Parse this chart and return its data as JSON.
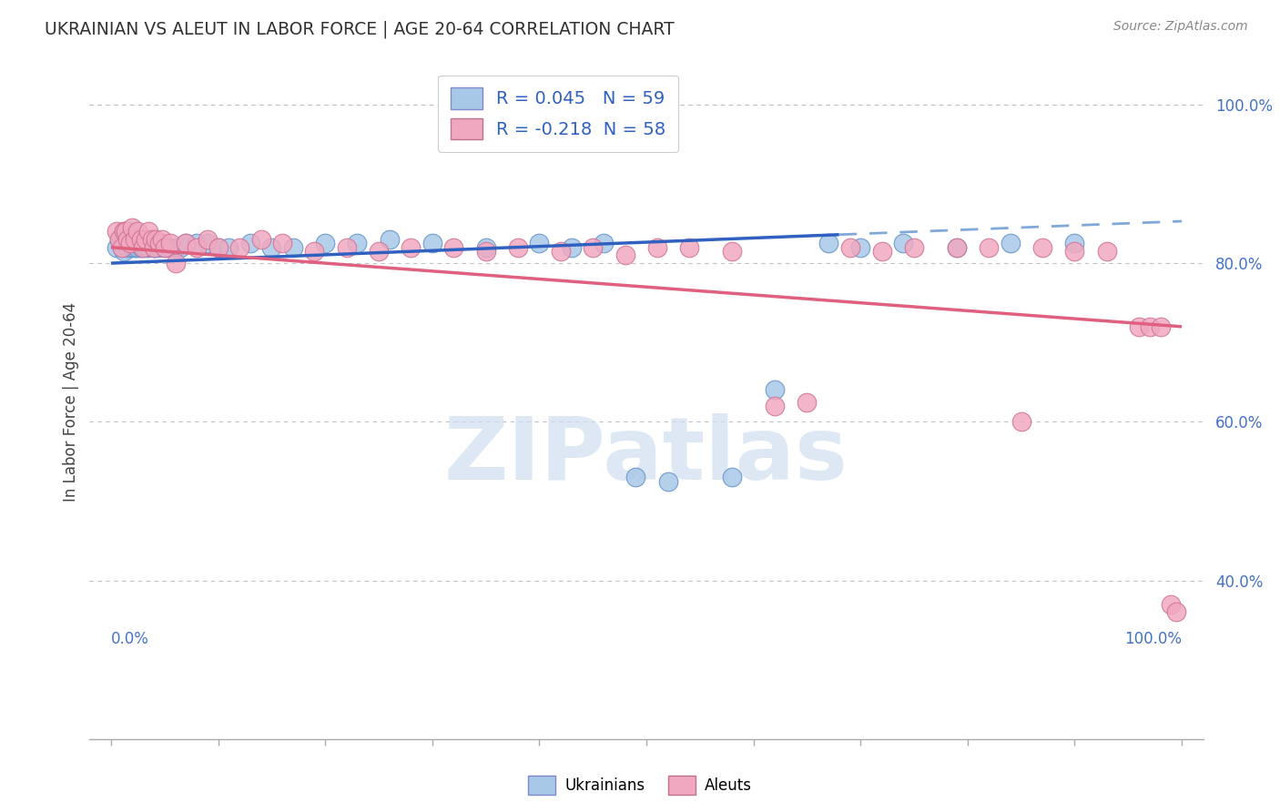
{
  "title": "UKRAINIAN VS ALEUT IN LABOR FORCE | AGE 20-64 CORRELATION CHART",
  "source": "Source: ZipAtlas.com",
  "ylabel": "In Labor Force | Age 20-64",
  "ukrainian_color": "#a8c8e8",
  "aleut_color": "#f0a8c0",
  "trend_ukrainian_solid_color": "#3060c0",
  "trend_ukrainian_dash_color": "#80a8d8",
  "trend_aleut_color": "#e06080",
  "watermark_text": "ZIPatlas",
  "legend_line1": "R = 0.045   N = 59",
  "legend_line2": "R = -0.218  N = 58",
  "ukr_x": [
    0.005,
    0.008,
    0.01,
    0.01,
    0.01,
    0.012,
    0.012,
    0.013,
    0.015,
    0.015,
    0.015,
    0.018,
    0.018,
    0.02,
    0.02,
    0.022,
    0.022,
    0.025,
    0.025,
    0.028,
    0.028,
    0.03,
    0.032,
    0.035,
    0.038,
    0.04,
    0.042,
    0.045,
    0.048,
    0.05,
    0.055,
    0.06,
    0.065,
    0.07,
    0.08,
    0.09,
    0.1,
    0.11,
    0.13,
    0.15,
    0.17,
    0.2,
    0.23,
    0.26,
    0.3,
    0.35,
    0.4,
    0.43,
    0.46,
    0.49,
    0.52,
    0.58,
    0.62,
    0.67,
    0.7,
    0.74,
    0.79,
    0.84,
    0.9
  ],
  "ukr_y": [
    0.82,
    0.83,
    0.82,
    0.835,
    0.825,
    0.815,
    0.835,
    0.84,
    0.82,
    0.83,
    0.84,
    0.825,
    0.835,
    0.82,
    0.835,
    0.82,
    0.83,
    0.82,
    0.83,
    0.82,
    0.825,
    0.83,
    0.82,
    0.82,
    0.825,
    0.82,
    0.82,
    0.82,
    0.825,
    0.82,
    0.82,
    0.82,
    0.82,
    0.825,
    0.825,
    0.825,
    0.82,
    0.82,
    0.825,
    0.82,
    0.82,
    0.825,
    0.825,
    0.83,
    0.825,
    0.82,
    0.825,
    0.82,
    0.825,
    0.53,
    0.525,
    0.53,
    0.64,
    0.825,
    0.82,
    0.825,
    0.82,
    0.825,
    0.825
  ],
  "aleut_x": [
    0.005,
    0.008,
    0.01,
    0.012,
    0.014,
    0.015,
    0.018,
    0.02,
    0.022,
    0.025,
    0.028,
    0.03,
    0.032,
    0.035,
    0.038,
    0.04,
    0.042,
    0.045,
    0.048,
    0.05,
    0.055,
    0.06,
    0.07,
    0.08,
    0.09,
    0.1,
    0.12,
    0.14,
    0.16,
    0.19,
    0.22,
    0.25,
    0.28,
    0.32,
    0.35,
    0.38,
    0.42,
    0.45,
    0.48,
    0.51,
    0.54,
    0.58,
    0.62,
    0.65,
    0.69,
    0.72,
    0.75,
    0.79,
    0.82,
    0.85,
    0.87,
    0.9,
    0.93,
    0.96,
    0.97,
    0.98,
    0.99,
    0.995
  ],
  "aleut_y": [
    0.84,
    0.83,
    0.82,
    0.84,
    0.84,
    0.83,
    0.825,
    0.845,
    0.83,
    0.84,
    0.83,
    0.82,
    0.83,
    0.84,
    0.83,
    0.82,
    0.83,
    0.825,
    0.83,
    0.82,
    0.825,
    0.8,
    0.825,
    0.82,
    0.83,
    0.82,
    0.82,
    0.83,
    0.825,
    0.815,
    0.82,
    0.815,
    0.82,
    0.82,
    0.815,
    0.82,
    0.815,
    0.82,
    0.81,
    0.82,
    0.82,
    0.815,
    0.62,
    0.625,
    0.82,
    0.815,
    0.82,
    0.82,
    0.82,
    0.6,
    0.82,
    0.815,
    0.815,
    0.72,
    0.72,
    0.72,
    0.37,
    0.36
  ],
  "ukr_trend_x0": 0.0,
  "ukr_trend_y0": 0.8,
  "ukr_trend_x1": 0.68,
  "ukr_trend_y1": 0.836,
  "ukr_trend_dash_x0": 0.68,
  "ukr_trend_dash_x1": 1.0,
  "aleut_trend_x0": 0.0,
  "aleut_trend_y0": 0.82,
  "aleut_trend_x1": 1.0,
  "aleut_trend_y1": 0.72,
  "xlim": [
    -0.02,
    1.02
  ],
  "ylim": [
    0.2,
    1.05
  ],
  "yticks": [
    0.4,
    0.6,
    0.8,
    1.0
  ],
  "ytick_labels": [
    "40.0%",
    "60.0%",
    "80.0%",
    "100.0%"
  ]
}
